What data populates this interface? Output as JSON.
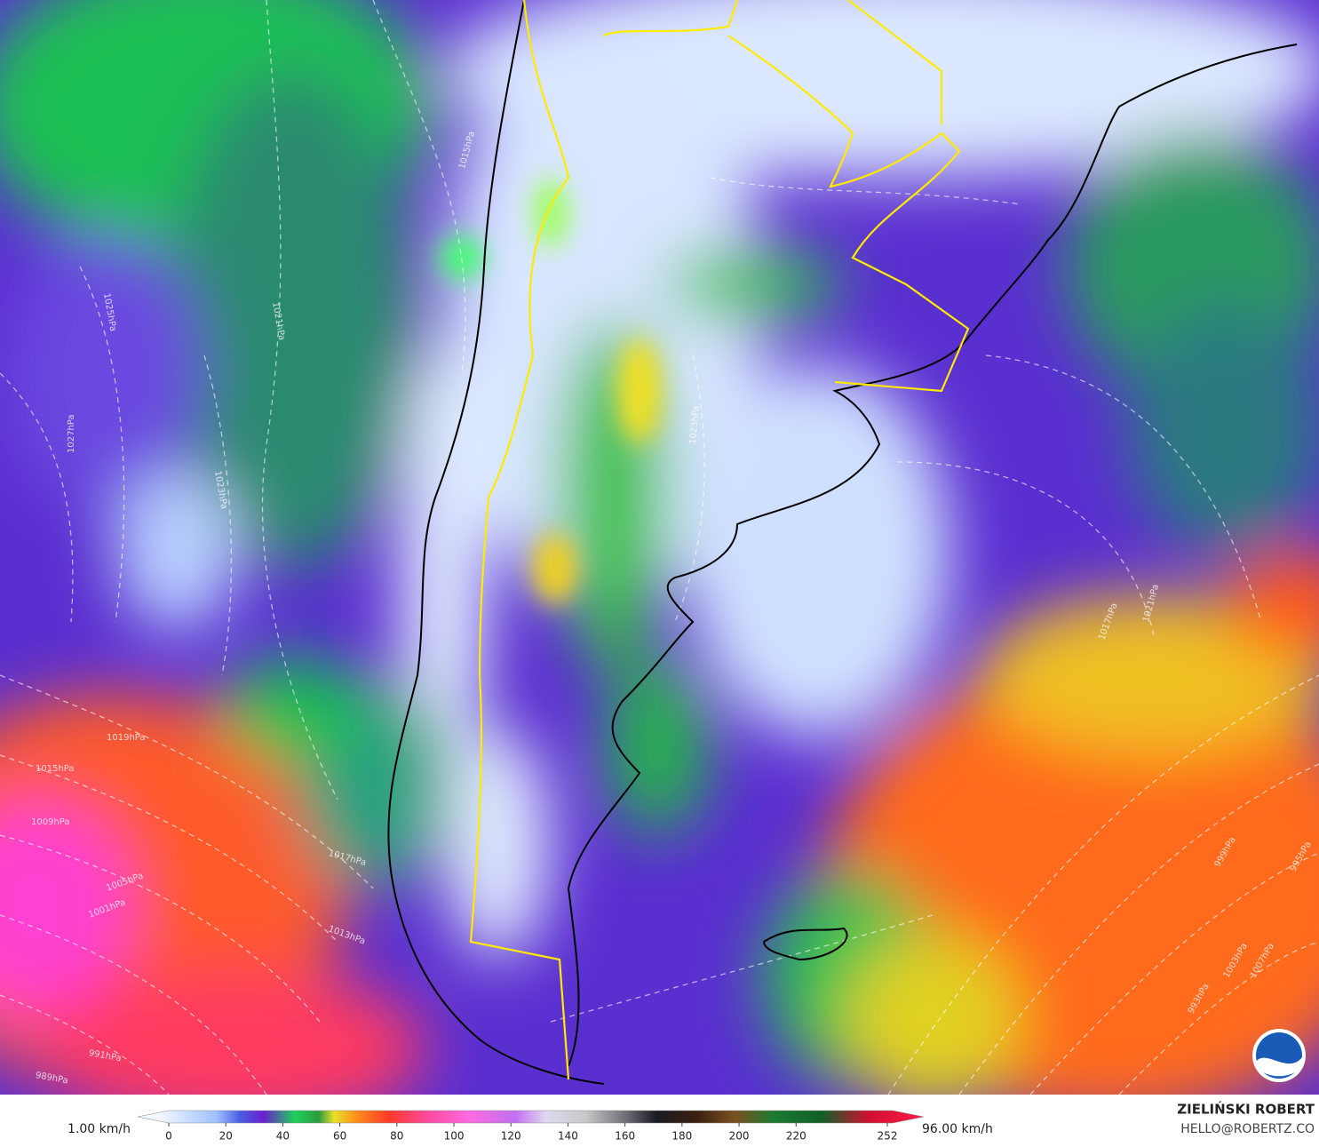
{
  "map": {
    "isobars": [
      {
        "label": "1015hPa"
      },
      {
        "label": "1021hPa"
      },
      {
        "label": "1025hPa"
      },
      {
        "label": "1027hPa"
      },
      {
        "label": "1023hPa"
      },
      {
        "label": "1019hPa"
      },
      {
        "label": "1015hPa"
      },
      {
        "label": "1009hPa"
      },
      {
        "label": "1005hPa"
      },
      {
        "label": "1001hPa"
      },
      {
        "label": "1017hPa"
      },
      {
        "label": "1013hPa"
      },
      {
        "label": "1023hPa"
      },
      {
        "label": "1021hPa"
      },
      {
        "label": "1017hPa"
      },
      {
        "label": "1007hPa"
      },
      {
        "label": "1003hPa"
      },
      {
        "label": "999hPa"
      },
      {
        "label": "995hPa"
      },
      {
        "label": "993hPa"
      },
      {
        "label": "991hPa"
      },
      {
        "label": "989hPa"
      }
    ]
  },
  "colorbar": {
    "min_label": "1.00 km/h",
    "max_label": "96.00 km/h",
    "ticks": [
      0,
      20,
      40,
      60,
      80,
      100,
      120,
      140,
      160,
      180,
      200,
      220,
      252
    ]
  },
  "credits": {
    "author": "ZIELIŃSKI ROBERT",
    "contact": "HELLO@ROBERTZ.CO"
  }
}
